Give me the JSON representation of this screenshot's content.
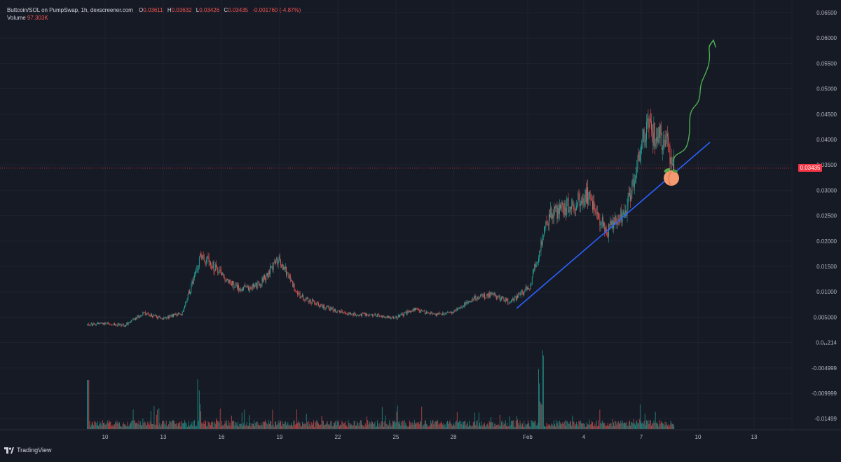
{
  "header": {
    "symbol": "Buttcoin/SOL on PumpSwap, 1h, dexscreener.com",
    "open_label": "O",
    "open": "0.03611",
    "high_label": "H",
    "high": "0.03632",
    "low_label": "L",
    "low": "0.03426",
    "close_label": "C",
    "close": "0.03435",
    "change": "-0.001760 (-4.87%)",
    "volume_label": "Volume",
    "volume": "97.303K"
  },
  "last_price_tag": "0.03435",
  "branding": "TradingView",
  "colors": {
    "background": "#161a25",
    "up": "#26a69a",
    "down": "#ef5350",
    "trendline": "#2962ff",
    "arrow": "#4caf50",
    "last_price": "#f23645"
  },
  "annotations": {
    "trendline": "blue support trendline drawn from ~Feb 1 to ~Feb 9",
    "arrow": "hand-drawn green upward arrow",
    "emoji": "peach"
  },
  "chart_data": {
    "type": "candlestick",
    "title": "Buttcoin/SOL on PumpSwap, 1h, dexscreener.com",
    "x_ticks": [
      "10",
      "13",
      "16",
      "19",
      "22",
      "25",
      "28",
      "Feb",
      "4",
      "7",
      "10",
      "13"
    ],
    "y_ticks": [
      "0.06500",
      "0.06000",
      "0.05500",
      "0.05000",
      "0.04500",
      "0.04000",
      "0.03500",
      "0.03000",
      "0.02500",
      "0.02000",
      "0.01500",
      "0.01000",
      "0.005000",
      "0.0₁₁214",
      "-0.004999",
      "-0.009999",
      "-0.01499"
    ],
    "ylim": [
      -0.0175,
      0.0665
    ],
    "price_path": [
      {
        "x": "Jan 9",
        "y": 0.0035
      },
      {
        "x": "Jan 10",
        "y": 0.0038
      },
      {
        "x": "Jan 11",
        "y": 0.0034
      },
      {
        "x": "Jan 12",
        "y": 0.0058
      },
      {
        "x": "Jan 13",
        "y": 0.0047
      },
      {
        "x": "Jan 14",
        "y": 0.0058
      },
      {
        "x": "Jan 15",
        "y": 0.0175
      },
      {
        "x": "Jan 16",
        "y": 0.0135
      },
      {
        "x": "Jan 17",
        "y": 0.0105
      },
      {
        "x": "Jan 18",
        "y": 0.0115
      },
      {
        "x": "Jan 19",
        "y": 0.0165
      },
      {
        "x": "Jan 20",
        "y": 0.0095
      },
      {
        "x": "Jan 21",
        "y": 0.0075
      },
      {
        "x": "Jan 22",
        "y": 0.0062
      },
      {
        "x": "Jan 23",
        "y": 0.0055
      },
      {
        "x": "Jan 24",
        "y": 0.0055
      },
      {
        "x": "Jan 25",
        "y": 0.0048
      },
      {
        "x": "Jan 26",
        "y": 0.0065
      },
      {
        "x": "Jan 27",
        "y": 0.0055
      },
      {
        "x": "Jan 28",
        "y": 0.006
      },
      {
        "x": "Jan 29",
        "y": 0.0085
      },
      {
        "x": "Jan 30",
        "y": 0.0095
      },
      {
        "x": "Jan 31",
        "y": 0.008
      },
      {
        "x": "Feb 1",
        "y": 0.011
      },
      {
        "x": "Feb 2",
        "y": 0.025
      },
      {
        "x": "Feb 3",
        "y": 0.027
      },
      {
        "x": "Feb 4",
        "y": 0.029
      },
      {
        "x": "Feb 5",
        "y": 0.022
      },
      {
        "x": "Feb 6",
        "y": 0.026
      },
      {
        "x": "Feb 7",
        "y": 0.042
      },
      {
        "x": "Feb 8",
        "y": 0.04
      },
      {
        "x": "Feb 8 close",
        "y": 0.03435
      }
    ]
  }
}
